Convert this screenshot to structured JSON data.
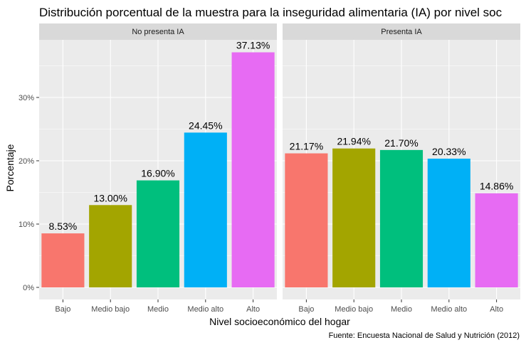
{
  "chart_data": {
    "type": "bar",
    "title": "Distribución porcentual de la muestra para la inseguridad alimentaria (IA) por nivel soc",
    "xlabel": "Nivel socioeconómico del hogar",
    "ylabel": "Porcentaje",
    "caption": "Fuente: Encuesta Nacional de Salud y Nutrición (2012)",
    "categories": [
      "Bajo",
      "Medio bajo",
      "Medio",
      "Medio alto",
      "Alto"
    ],
    "colors": [
      "#F8766D",
      "#A3A500",
      "#00BF7D",
      "#00B0F6",
      "#E76BF3"
    ],
    "ylim": [
      0,
      39
    ],
    "yticks": [
      0,
      10,
      20,
      30
    ],
    "ytick_labels": [
      "0%",
      "10%",
      "20%",
      "30%"
    ],
    "grid": true,
    "panels": [
      {
        "name": "No presenta IA",
        "values": [
          8.53,
          13.0,
          16.9,
          24.45,
          37.13
        ],
        "labels": [
          "8.53%",
          "13.00%",
          "16.90%",
          "24.45%",
          "37.13%"
        ]
      },
      {
        "name": "Presenta IA",
        "values": [
          21.17,
          21.94,
          21.7,
          20.33,
          14.86
        ],
        "labels": [
          "21.17%",
          "21.94%",
          "21.70%",
          "20.33%",
          "14.86%"
        ]
      }
    ]
  }
}
